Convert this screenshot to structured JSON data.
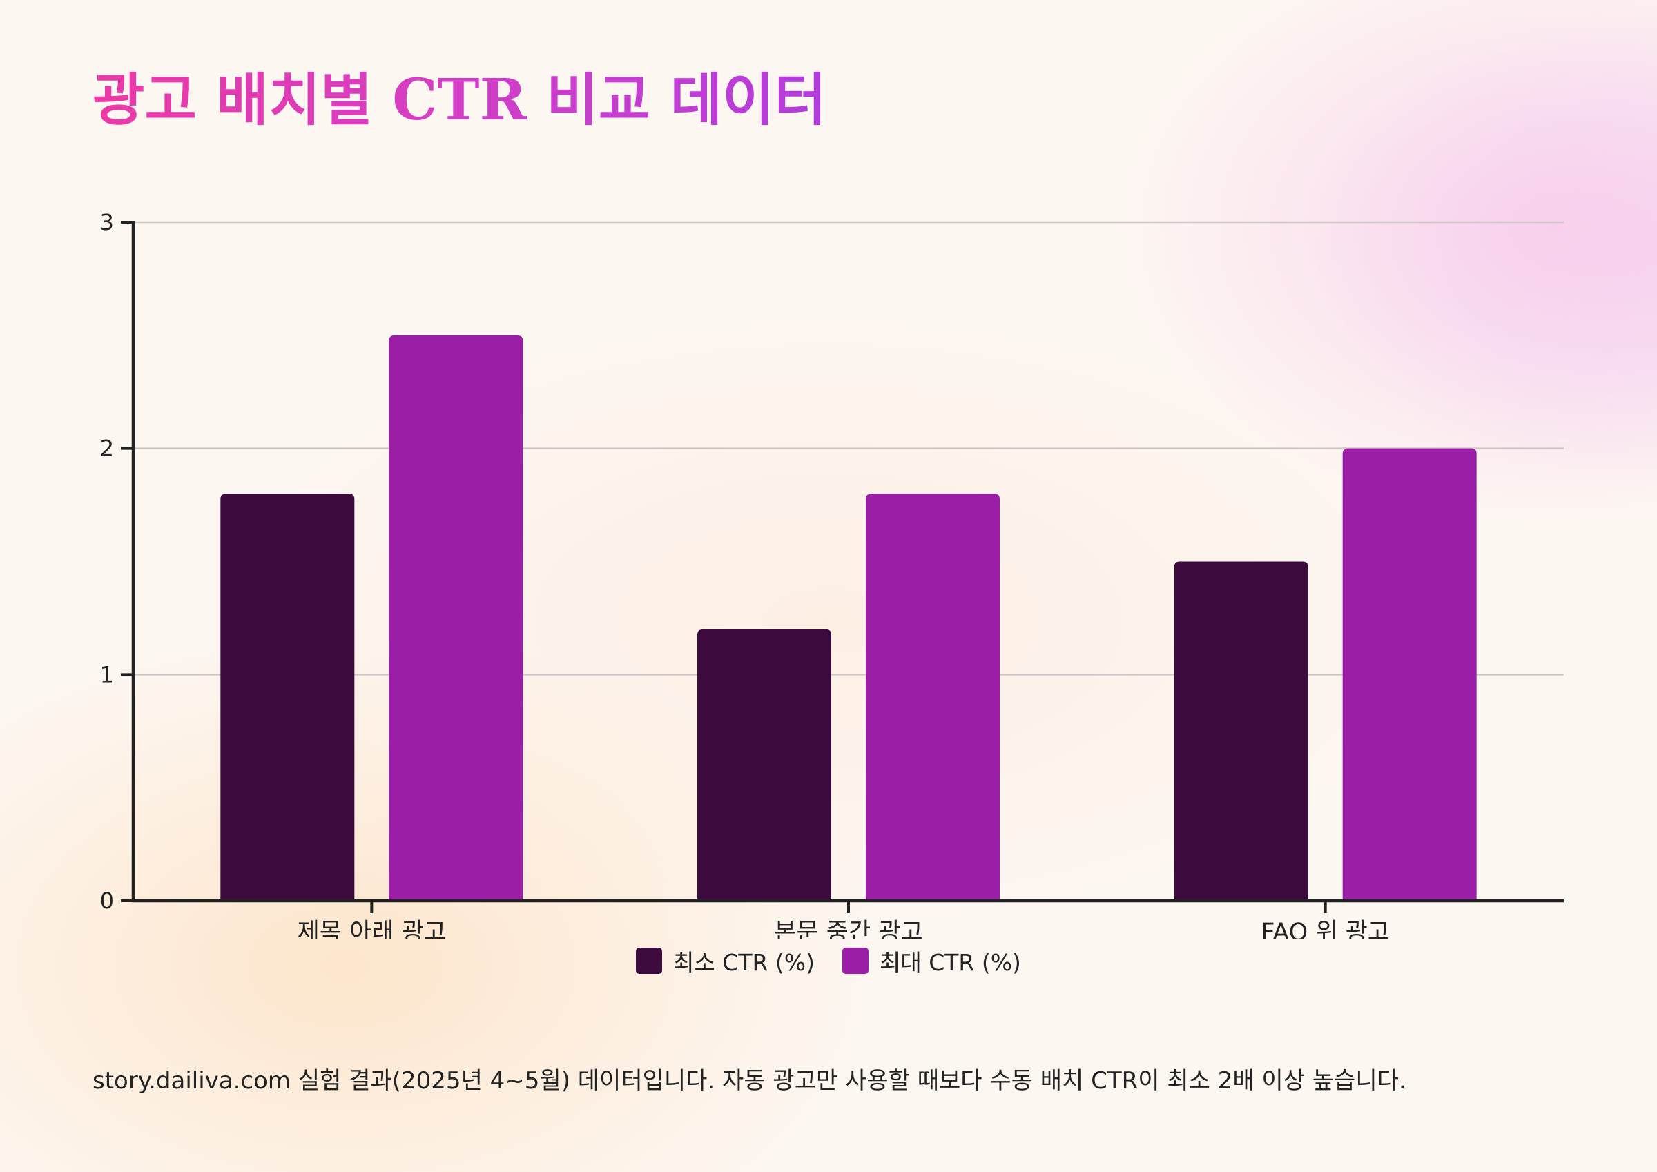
{
  "title": "광고 배치별 CTR 비교 데이터",
  "chart_data": {
    "type": "bar",
    "title": "광고 배치별 CTR 비교 데이터",
    "categories": [
      "제목 아래 광고",
      "본문 중간 광고",
      "FAQ 위 광고"
    ],
    "series": [
      {
        "name": "최소 CTR (%)",
        "values": [
          1.8,
          1.2,
          1.5
        ],
        "color": "#3d0a3e"
      },
      {
        "name": "최대 CTR (%)",
        "values": [
          2.5,
          1.8,
          2.0
        ],
        "color": "#9b1fa6"
      }
    ],
    "xlabel": "",
    "ylabel": "",
    "ylim": [
      0,
      3
    ],
    "yticks": [
      0,
      1,
      2,
      3
    ],
    "grid": true,
    "legend_position": "bottom-center"
  },
  "footnote": "story.dailiva.com 실험 결과(2025년 4~5월) 데이터입니다. 자동 광고만 사용할 때보다 수동 배치 CTR이 최소 2배 이상 높습니다."
}
